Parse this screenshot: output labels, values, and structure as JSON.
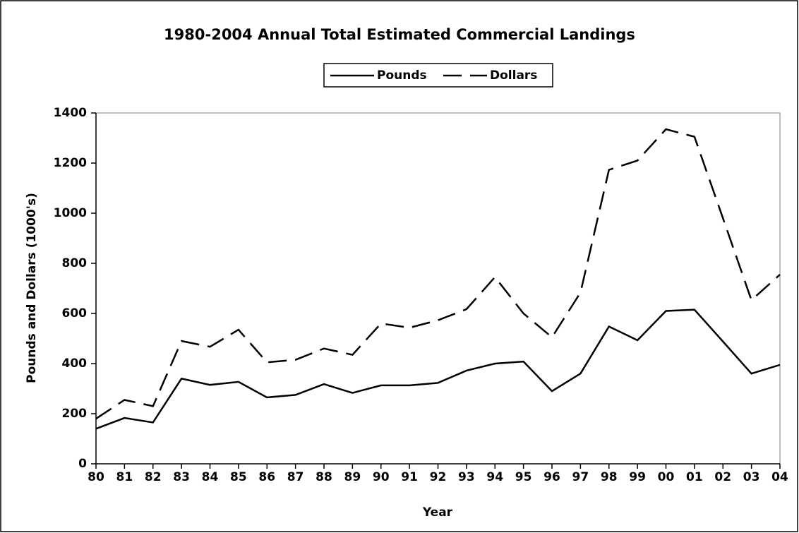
{
  "chart_data": {
    "type": "line",
    "title": "1980-2004 Annual Total Estimated Commercial Landings",
    "x_label": "Year",
    "y_label": "Pounds and Dollars (1000's)",
    "categories": [
      "80",
      "81",
      "82",
      "83",
      "84",
      "85",
      "86",
      "87",
      "88",
      "89",
      "90",
      "91",
      "92",
      "93",
      "94",
      "95",
      "96",
      "97",
      "98",
      "99",
      "00",
      "01",
      "02",
      "03",
      "04"
    ],
    "series": [
      {
        "name": "Pounds",
        "color": "#000000",
        "style": "solid",
        "values": [
          140,
          183,
          165,
          340,
          315,
          327,
          265,
          275,
          318,
          283,
          313,
          313,
          323,
          372,
          400,
          408,
          290,
          360,
          548,
          493,
          610,
          615,
          488,
          360,
          395
        ]
      },
      {
        "name": "Dollars",
        "color": "#000000",
        "style": "dashed",
        "values": [
          180,
          255,
          230,
          490,
          467,
          535,
          405,
          415,
          460,
          435,
          560,
          543,
          573,
          617,
          745,
          600,
          505,
          683,
          1173,
          1210,
          1335,
          1305,
          980,
          653,
          755
        ]
      }
    ],
    "ylim": [
      0,
      1400
    ],
    "yticks": [
      0,
      200,
      400,
      600,
      800,
      1000,
      1200,
      1400
    ],
    "grid": false,
    "legend": "top"
  }
}
